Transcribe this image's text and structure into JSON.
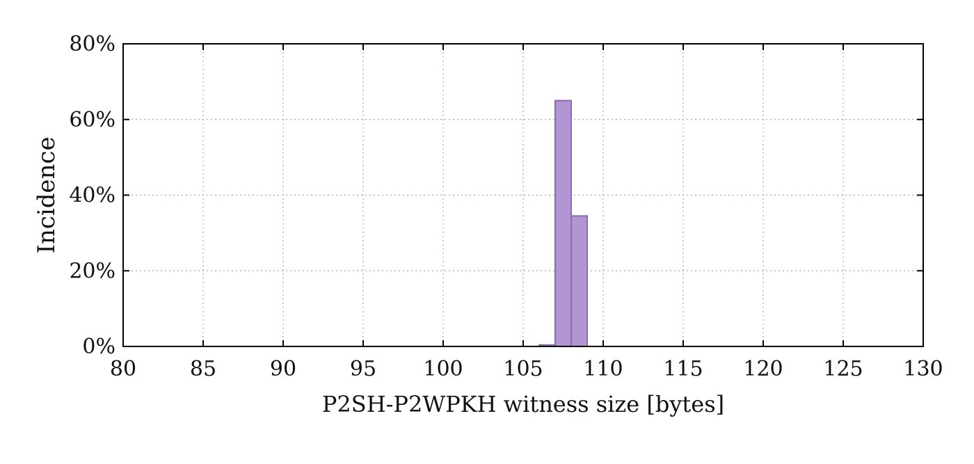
{
  "chart_data": {
    "type": "bar",
    "title": "",
    "xlabel": "P2SH-P2WPKH witness size [bytes]",
    "ylabel": "Incidence",
    "xlim": [
      80,
      130
    ],
    "ylim": [
      0,
      80
    ],
    "x_ticks": [
      80,
      85,
      90,
      95,
      100,
      105,
      110,
      115,
      120,
      125,
      130
    ],
    "x_tick_labels": [
      "80",
      "85",
      "90",
      "95",
      "100",
      "105",
      "110",
      "115",
      "120",
      "125",
      "130"
    ],
    "y_ticks": [
      0,
      20,
      40,
      60,
      80
    ],
    "y_tick_labels": [
      "0%",
      "20%",
      "40%",
      "60%",
      "80%"
    ],
    "grid": true,
    "bar_width": 1,
    "bar_color": "#b395d3",
    "bar_edge_color": "#8a6ab1",
    "series": [
      {
        "x": [
          106,
          107,
          108
        ],
        "values": [
          0.4,
          65,
          34.5
        ]
      }
    ]
  }
}
